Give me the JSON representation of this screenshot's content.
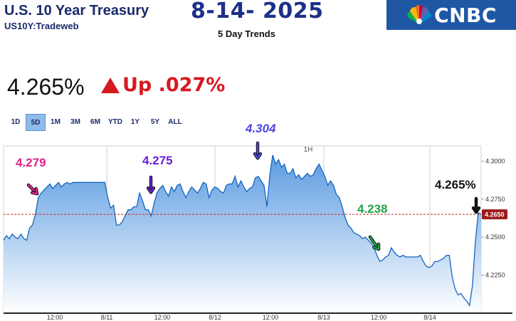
{
  "header": {
    "title": "U.S. 10 Year Treasury",
    "symbol": "US10Y:Tradeweb",
    "date": "8-14- 2025",
    "subtitle": "5 Day Trends",
    "brand": "CNBC"
  },
  "quote": {
    "price": "4.265%",
    "change": "Up .027%",
    "direction": "up",
    "up_color": "#d71920"
  },
  "ranges": {
    "items": [
      "1D",
      "5D",
      "1M",
      "3M",
      "6M",
      "YTD",
      "1Y",
      "5Y",
      "ALL"
    ],
    "active": "5D"
  },
  "chart_data": {
    "type": "area",
    "interval_label": "1H",
    "x_ticks": [
      "12:00",
      "8/11",
      "12:00",
      "8/12",
      "12:00",
      "8/13",
      "12:00",
      "8/14"
    ],
    "y_ticks": [
      "4.3000",
      "4.2750",
      "4.2500",
      "4.2250"
    ],
    "ylim": [
      4.2,
      4.31
    ],
    "last_value_label": "4.2650",
    "last_value": 4.265,
    "values": [
      4.248,
      4.251,
      4.249,
      4.252,
      4.25,
      4.249,
      4.252,
      4.249,
      4.248,
      4.256,
      4.258,
      4.265,
      4.276,
      4.279,
      4.281,
      4.283,
      4.285,
      4.282,
      4.284,
      4.286,
      4.283,
      4.285,
      4.286,
      4.285,
      4.286,
      4.286,
      4.286,
      4.286,
      4.286,
      4.286,
      4.286,
      4.286,
      4.286,
      4.286,
      4.286,
      4.286,
      4.276,
      4.269,
      4.271,
      4.258,
      4.258,
      4.26,
      4.264,
      4.268,
      4.268,
      4.27,
      4.27,
      4.279,
      4.274,
      4.268,
      4.268,
      4.264,
      4.272,
      4.279,
      4.282,
      4.284,
      4.28,
      4.277,
      4.283,
      4.28,
      4.284,
      4.285,
      4.28,
      4.276,
      4.28,
      4.283,
      4.281,
      4.279,
      4.282,
      4.286,
      4.285,
      4.276,
      4.281,
      4.283,
      4.282,
      4.28,
      4.279,
      4.284,
      4.285,
      4.285,
      4.29,
      4.283,
      4.287,
      4.283,
      4.28,
      4.282,
      4.283,
      4.289,
      4.29,
      4.287,
      4.284,
      4.27,
      4.291,
      4.304,
      4.298,
      4.301,
      4.296,
      4.298,
      4.292,
      4.292,
      4.295,
      4.289,
      4.291,
      4.288,
      4.29,
      4.292,
      4.29,
      4.291,
      4.295,
      4.298,
      4.294,
      4.29,
      4.284,
      4.287,
      4.284,
      4.278,
      4.276,
      4.27,
      4.263,
      4.258,
      4.256,
      4.253,
      4.252,
      4.251,
      4.249,
      4.25,
      4.248,
      4.246,
      4.243,
      4.238,
      4.234,
      4.235,
      4.237,
      4.238,
      4.243,
      4.24,
      4.238,
      4.237,
      4.238,
      4.237,
      4.237,
      4.237,
      4.237,
      4.237,
      4.238,
      4.234,
      4.231,
      4.23,
      4.231,
      4.234,
      4.234,
      4.235,
      4.236,
      4.238,
      4.238,
      4.224,
      4.216,
      4.212,
      4.213,
      4.21,
      4.208,
      4.205,
      4.218,
      4.247,
      4.266,
      4.265
    ],
    "annotations": [
      {
        "text": "4.279",
        "color": "#e0218a",
        "value": 4.279
      },
      {
        "text": "4.275",
        "color": "#6a1fd8",
        "value": 4.275
      },
      {
        "text": "4.304",
        "color": "#4d46e0",
        "value": 4.304
      },
      {
        "text": "4.238",
        "color": "#1fa24a",
        "value": 4.238
      },
      {
        "text": "4.265%",
        "color": "#111111",
        "value": 4.265
      }
    ],
    "colors": {
      "line": "#1565c0",
      "fill_top": "#5a9be0",
      "fill_bottom": "#ffffff",
      "reference_line": "#c62828",
      "last_label_bg": "#9e1b1b"
    }
  }
}
